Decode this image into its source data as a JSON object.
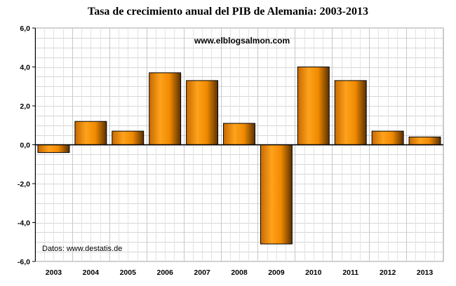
{
  "title": "Tasa de crecimiento anual del PIB de Alemania: 2003-2013",
  "watermark": "www.elblogsalmon.com",
  "source": "Datos: www.destatis.de",
  "chart_data": {
    "type": "bar",
    "title": "Tasa de crecimiento anual del PIB de Alemania: 2003-2013",
    "xlabel": "",
    "ylabel": "",
    "categories": [
      "2003",
      "2004",
      "2005",
      "2006",
      "2007",
      "2008",
      "2009",
      "2010",
      "2011",
      "2012",
      "2013"
    ],
    "values": [
      -0.4,
      1.2,
      0.7,
      3.7,
      3.3,
      1.1,
      -5.1,
      4.0,
      3.3,
      0.7,
      0.4
    ],
    "ylim": [
      -6,
      6
    ],
    "yticks": [
      "6,0",
      "4,0",
      "2,0",
      "0,0",
      "-2,0",
      "-4,0",
      "-6,0"
    ],
    "ytick_values": [
      6,
      4,
      2,
      0,
      -2,
      -4,
      -6
    ],
    "grid": true,
    "legend": "none",
    "bar_color": "#f59a10",
    "bar_edge": "#000000"
  }
}
